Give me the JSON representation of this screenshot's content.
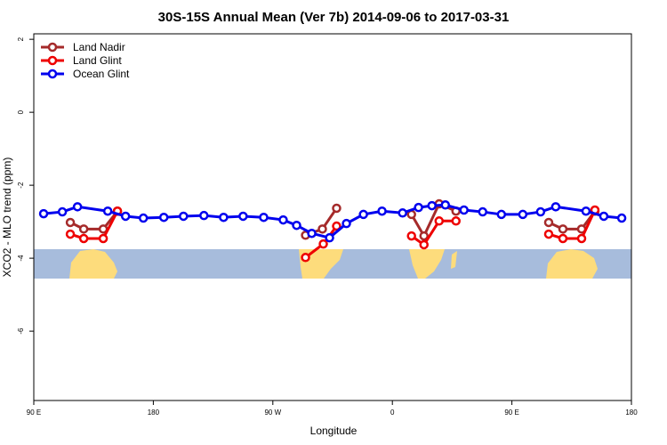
{
  "chart_data": {
    "type": "line",
    "title": "30S-15S Annual Mean (Ver 7b)   2014-09-06 to 2017-03-31",
    "x_label": "Longitude",
    "y_label": "XCO2 - MLO trend (ppm)",
    "xlim": [
      90,
      540
    ],
    "ylim": [
      -7.9,
      2.15
    ],
    "xticks": [
      {
        "value": 90,
        "label": "90 E"
      },
      {
        "value": 180,
        "label": "180"
      },
      {
        "value": 270,
        "label": "90 W"
      },
      {
        "value": 360,
        "label": "0"
      },
      {
        "value": 450,
        "label": "90 E"
      },
      {
        "value": 540,
        "label": "180"
      }
    ],
    "yticks": [
      -6,
      -4,
      -2,
      0,
      2
    ],
    "legend": "top-left",
    "series": [
      {
        "name": "Land Nadir",
        "color": "#a52a2a",
        "x": [
          117.5,
          127.6,
          142.3,
          153.0,
          null,
          294.6,
          307.3,
          318.0,
          null,
          374.4,
          383.8,
          395.2,
          407.9,
          null,
          477.7,
          488.4,
          502.5,
          512.5
        ],
        "values": [
          -3.02,
          -3.2,
          -3.2,
          -2.71,
          null,
          -3.37,
          -3.2,
          -2.63,
          null,
          -2.8,
          -3.39,
          -2.51,
          -2.71,
          null,
          -3.02,
          -3.2,
          -3.2,
          -2.71
        ]
      },
      {
        "name": "Land Glint",
        "color": "#ee0000",
        "x": [
          117.5,
          127.6,
          142.3,
          153.0,
          null,
          294.6,
          308.0,
          318.0,
          null,
          374.4,
          383.8,
          395.2,
          407.9,
          null,
          477.7,
          488.4,
          502.5,
          512.5
        ],
        "values": [
          -3.34,
          -3.46,
          -3.46,
          -2.71,
          null,
          -3.98,
          -3.61,
          -3.12,
          null,
          -3.39,
          -3.63,
          -2.98,
          -2.98,
          null,
          -3.34,
          -3.46,
          -3.46,
          -2.68
        ]
      },
      {
        "name": "Ocean Glint",
        "color": "#0000ee",
        "x": [
          97.4,
          111.5,
          122.9,
          145.7,
          159.1,
          172.5,
          187.9,
          202.7,
          218.1,
          232.9,
          247.6,
          263.1,
          277.8,
          287.9,
          299.3,
          312.7,
          325.4,
          338.2,
          352.2,
          367.7,
          379.7,
          389.8,
          399.9,
          413.9,
          428.0,
          442.1,
          458.2,
          471.6,
          483.0,
          505.8,
          519.2,
          532.7
        ],
        "values": [
          -2.78,
          -2.73,
          -2.59,
          -2.71,
          -2.85,
          -2.9,
          -2.88,
          -2.85,
          -2.83,
          -2.88,
          -2.85,
          -2.88,
          -2.95,
          -3.1,
          -3.32,
          -3.44,
          -3.05,
          -2.8,
          -2.71,
          -2.76,
          -2.61,
          -2.56,
          -2.54,
          -2.68,
          -2.73,
          -2.8,
          -2.8,
          -2.73,
          -2.59,
          -2.71,
          -2.85,
          -2.9
        ]
      }
    ]
  }
}
